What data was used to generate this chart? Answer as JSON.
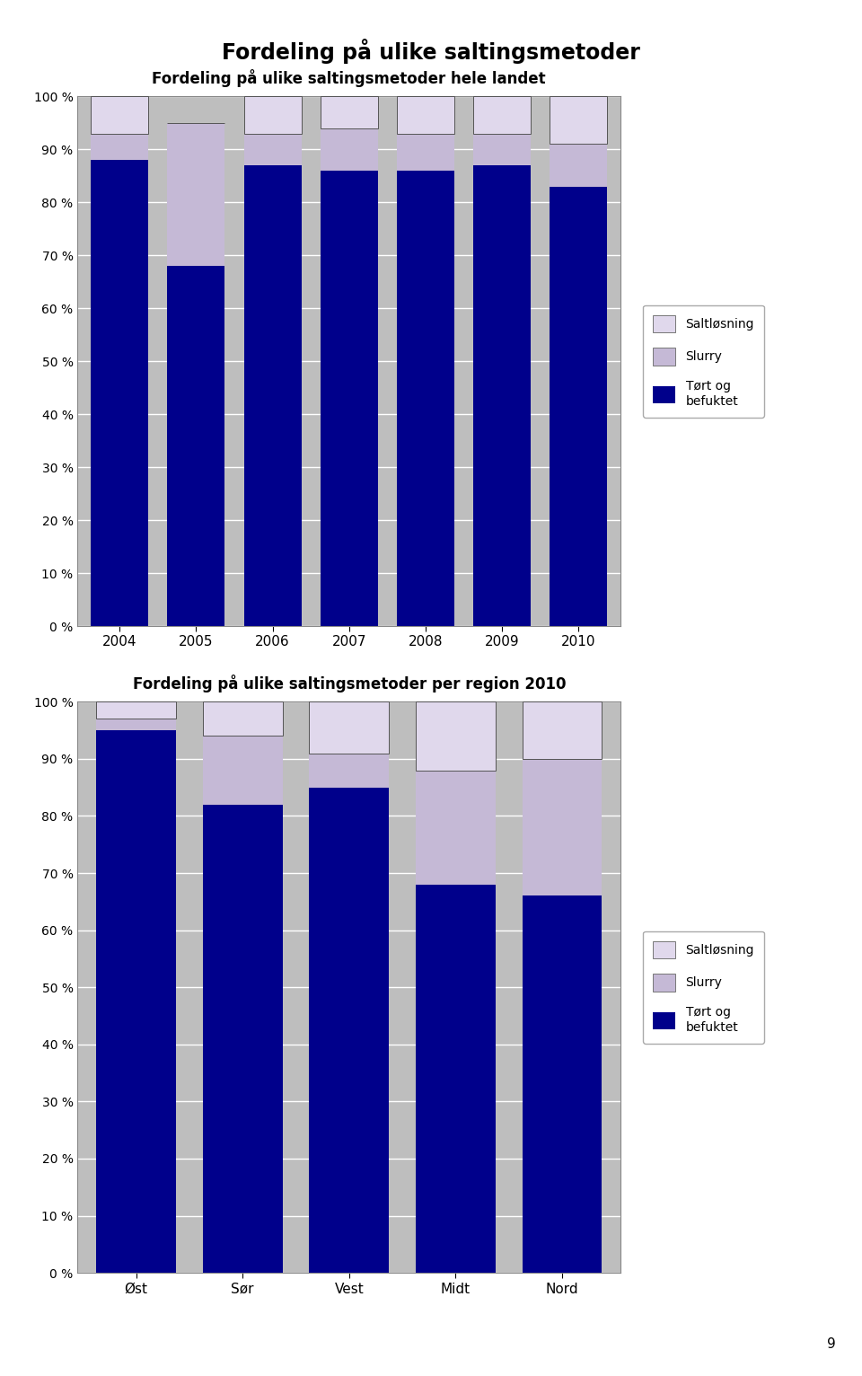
{
  "main_title": "Fordeling på ulike saltingsmetoder",
  "chart1_title": "Fordeling på ulike saltingsmetoder hele landet",
  "chart2_title": "Fordeling på ulike saltingsmetoder per region 2010",
  "chart1_categories": [
    "2004",
    "2005",
    "2006",
    "2007",
    "2008",
    "2009",
    "2010"
  ],
  "chart1_tort": [
    88,
    68,
    87,
    86,
    86,
    87,
    83
  ],
  "chart1_slurry": [
    5,
    27,
    6,
    8,
    7,
    6,
    8
  ],
  "chart1_salt": [
    7,
    0,
    7,
    6,
    7,
    7,
    9
  ],
  "chart2_categories": [
    "Øst",
    "Sør",
    "Vest",
    "Midt",
    "Nord"
  ],
  "chart2_tort": [
    95,
    82,
    85,
    68,
    66
  ],
  "chart2_slurry": [
    2,
    12,
    6,
    20,
    24
  ],
  "chart2_salt": [
    3,
    6,
    9,
    12,
    10
  ],
  "color_tort": "#00008B",
  "color_slurry": "#C5B9D6",
  "color_salt": "#E0D8EC",
  "bg_color": "#BEBEBE",
  "legend_salt": "Saltløsning",
  "legend_slurry": "Slurry",
  "legend_tort": "Tørt og\nbefuktet",
  "ytick_labels": [
    "0 %",
    "10 %",
    "20 %",
    "30 %",
    "40 %",
    "50 %",
    "60 %",
    "70 %",
    "80 %",
    "90 %",
    "100 %"
  ],
  "page_number": "9"
}
